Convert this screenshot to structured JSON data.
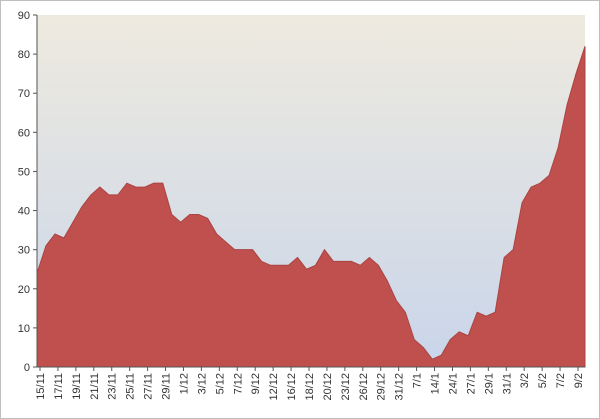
{
  "chart_data": {
    "type": "area",
    "title": "",
    "xlabel": "",
    "ylabel": "",
    "ylim": [
      0,
      90
    ],
    "yticks": [
      0,
      10,
      20,
      30,
      40,
      50,
      60,
      70,
      80,
      90
    ],
    "grid": false,
    "legend": "none",
    "colors": {
      "area_fill": "#C0504D",
      "area_stroke": "#A94442",
      "bg_top": "#EEEADF",
      "bg_bottom": "#C9D5EA",
      "axis": "#555555",
      "frame": "#BFBFBF"
    },
    "x_tick_labels": [
      "15/11",
      "17/11",
      "19/11",
      "21/11",
      "23/11",
      "25/11",
      "27/11",
      "29/11",
      "1/12",
      "3/12",
      "5/12",
      "7/12",
      "9/12",
      "12/12",
      "16/12",
      "18/12",
      "20/12",
      "23/12",
      "26/12",
      "29/12",
      "31/12",
      "7/1",
      "14/1",
      "24/1",
      "27/1",
      "29/1",
      "31/1",
      "3/2",
      "5/2",
      "7/2",
      "9/2"
    ],
    "series": [
      {
        "values": [
          24,
          31,
          34,
          33,
          37,
          41,
          44,
          46,
          44,
          44,
          47,
          46,
          46,
          47,
          47,
          39,
          37,
          39,
          39,
          38,
          34,
          32,
          30,
          30,
          30,
          27,
          26,
          26,
          26,
          28,
          25,
          26,
          30,
          27,
          27,
          27,
          26,
          28,
          26,
          22,
          17,
          14,
          7,
          5,
          2,
          3,
          7,
          9,
          8,
          14,
          13,
          14,
          28,
          30,
          42,
          46,
          47,
          49,
          56,
          67,
          75,
          82
        ]
      }
    ]
  }
}
